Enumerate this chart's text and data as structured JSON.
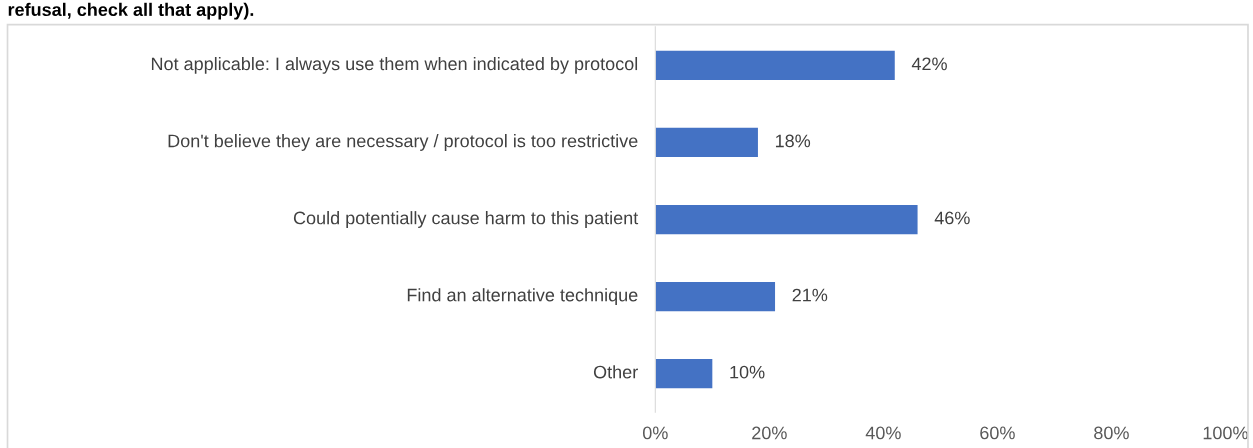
{
  "chart_data": {
    "type": "bar",
    "orientation": "horizontal",
    "title": "refusal, check all that apply).",
    "categories": [
      "Not applicable: I always use them when indicated by protocol",
      "Don't believe they are necessary / protocol is too restrictive",
      "Could potentially cause harm to this patient",
      "Find an alternative technique",
      "Other"
    ],
    "values": [
      42,
      18,
      46,
      21,
      10
    ],
    "value_labels": [
      "42%",
      "18%",
      "46%",
      "21%",
      "10%"
    ],
    "color": "#4472c4",
    "xlim": [
      0,
      100
    ],
    "xticks": [
      {
        "value": 0,
        "label": "0%"
      },
      {
        "value": 20,
        "label": "20%"
      },
      {
        "value": 40,
        "label": "40%"
      },
      {
        "value": 60,
        "label": "60%"
      },
      {
        "value": 80,
        "label": "80%"
      },
      {
        "value": 100,
        "label": "100%"
      }
    ],
    "grid": false,
    "legend": false
  }
}
